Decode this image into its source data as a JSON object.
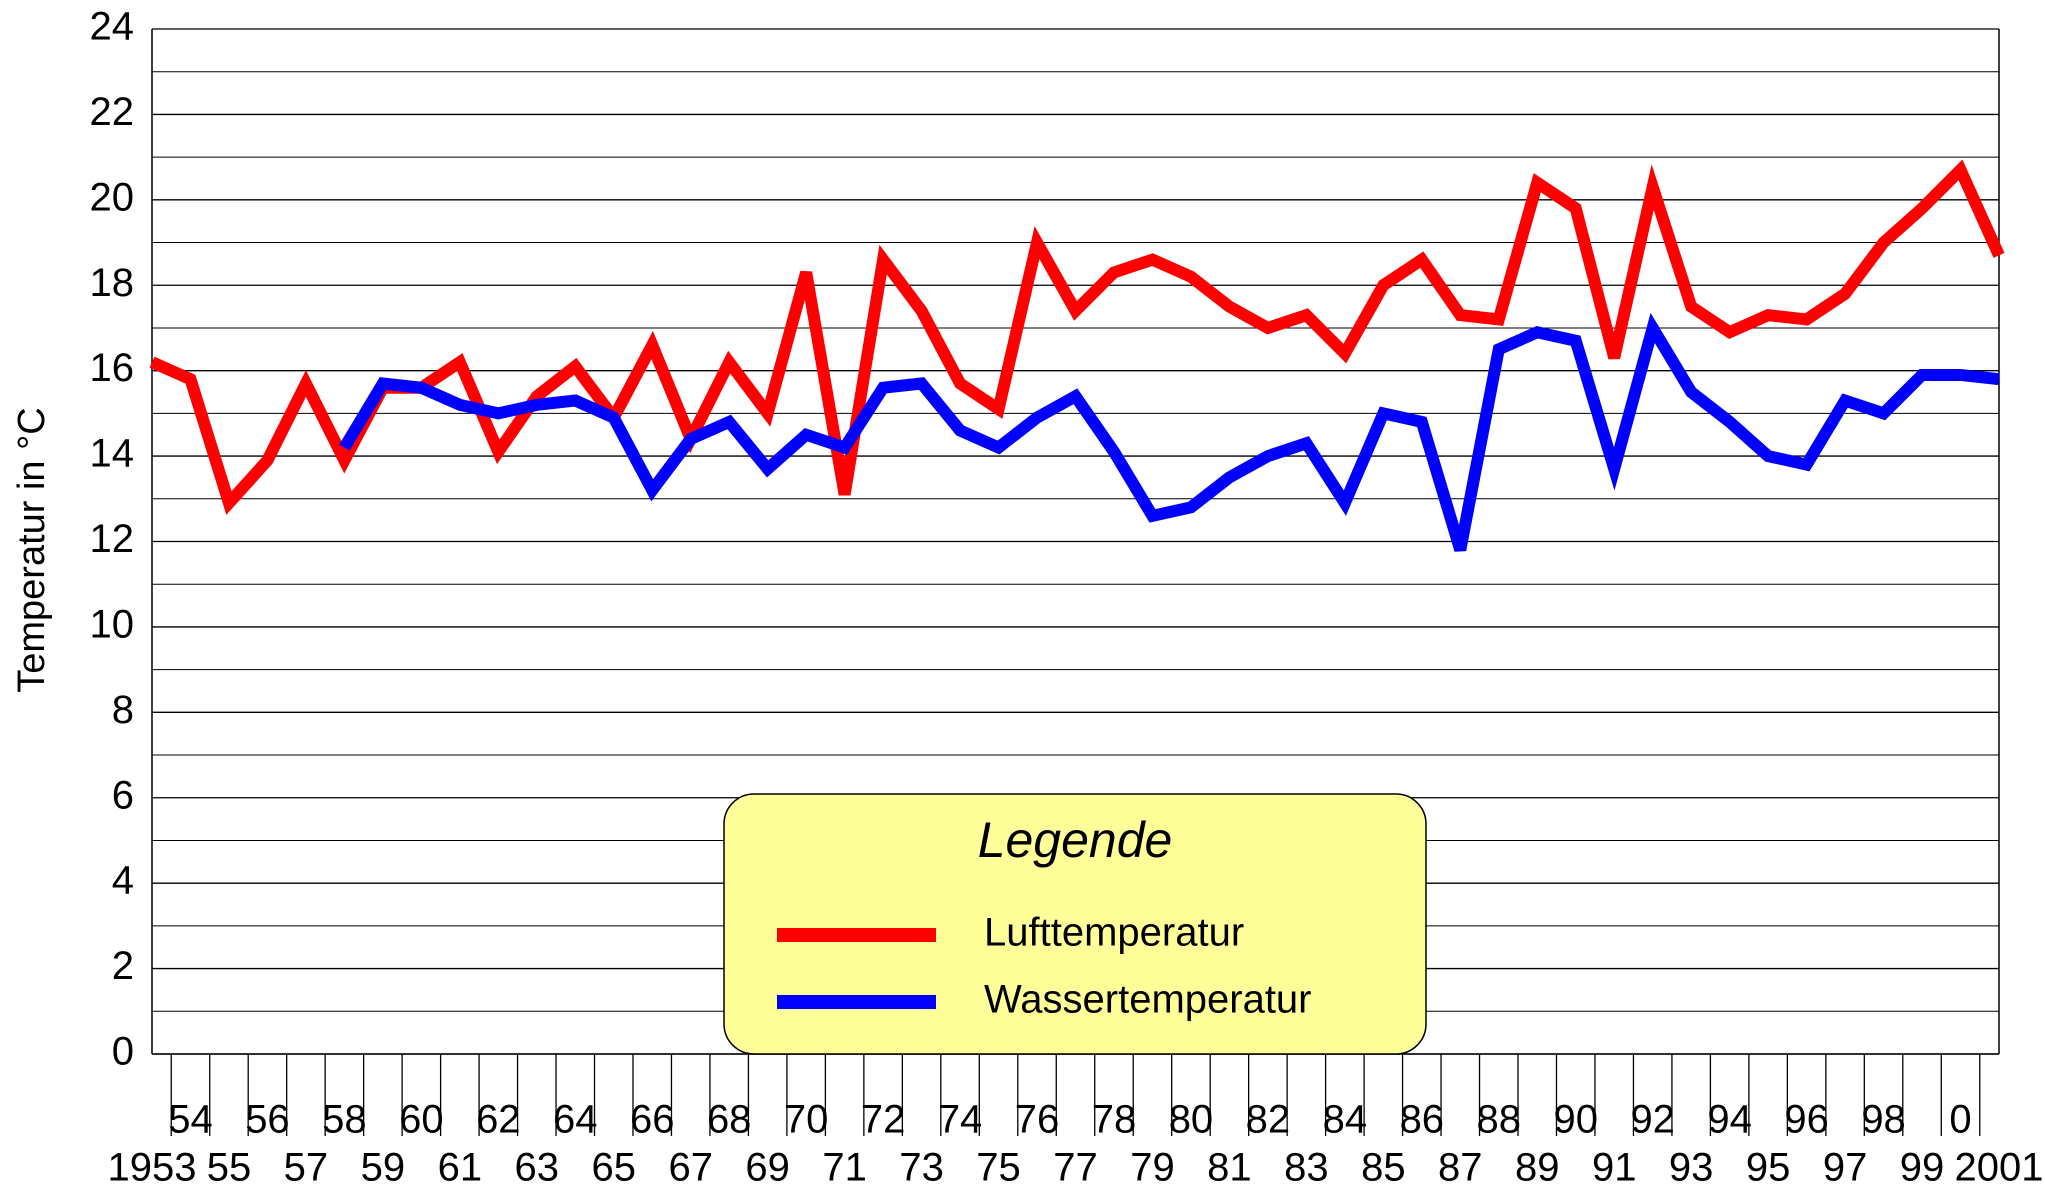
{
  "chart_data": {
    "type": "line",
    "y_label": "Temperatur in °C",
    "legend_title": "Legende",
    "categories": [
      "1953",
      "54",
      "55",
      "56",
      "57",
      "58",
      "59",
      "60",
      "61",
      "62",
      "63",
      "64",
      "65",
      "66",
      "67",
      "68",
      "69",
      "70",
      "71",
      "72",
      "73",
      "74",
      "75",
      "76",
      "77",
      "78",
      "79",
      "80",
      "81",
      "82",
      "83",
      "84",
      "85",
      "86",
      "87",
      "88",
      "89",
      "90",
      "91",
      "92",
      "93",
      "94",
      "95",
      "96",
      "97",
      "98",
      "99",
      "0",
      "2001"
    ],
    "series": [
      {
        "name": "Lufttemperatur",
        "color": "#ff0000",
        "values": [
          16.2,
          15.8,
          12.9,
          13.9,
          15.7,
          13.9,
          15.6,
          15.6,
          16.2,
          14.1,
          15.4,
          16.1,
          14.9,
          16.6,
          14.4,
          16.2,
          15.0,
          18.3,
          13.1,
          18.6,
          17.4,
          15.7,
          15.1,
          19.0,
          17.4,
          18.3,
          18.6,
          18.2,
          17.5,
          17.0,
          17.3,
          16.4,
          18.0,
          18.6,
          17.3,
          17.2,
          20.4,
          19.8,
          16.3,
          20.3,
          17.5,
          16.9,
          17.3,
          17.2,
          17.8,
          19.0,
          19.8,
          20.7,
          18.7
        ]
      },
      {
        "name": "Wassertemperatur",
        "color": "#0000ff",
        "values": [
          null,
          null,
          null,
          null,
          null,
          14.2,
          15.7,
          15.6,
          15.2,
          15.0,
          15.2,
          15.3,
          14.9,
          13.2,
          14.4,
          14.8,
          13.7,
          14.5,
          14.2,
          15.6,
          15.7,
          14.6,
          14.2,
          14.9,
          15.4,
          14.1,
          12.6,
          12.8,
          13.5,
          14.0,
          14.3,
          12.9,
          15.0,
          14.8,
          11.8,
          16.5,
          16.9,
          16.7,
          13.7,
          17.0,
          15.5,
          14.8,
          14.0,
          13.8,
          15.3,
          15.0,
          15.9,
          15.9,
          15.8
        ]
      }
    ],
    "ylim": [
      0,
      24
    ],
    "yticks": [
      0,
      2,
      4,
      6,
      8,
      10,
      12,
      14,
      16,
      18,
      20,
      22,
      24
    ],
    "minor_yticks": [
      1,
      3,
      5,
      7,
      9,
      11,
      13,
      15,
      17,
      19,
      21,
      23
    ],
    "grid": true,
    "legend_position": "bottom"
  }
}
